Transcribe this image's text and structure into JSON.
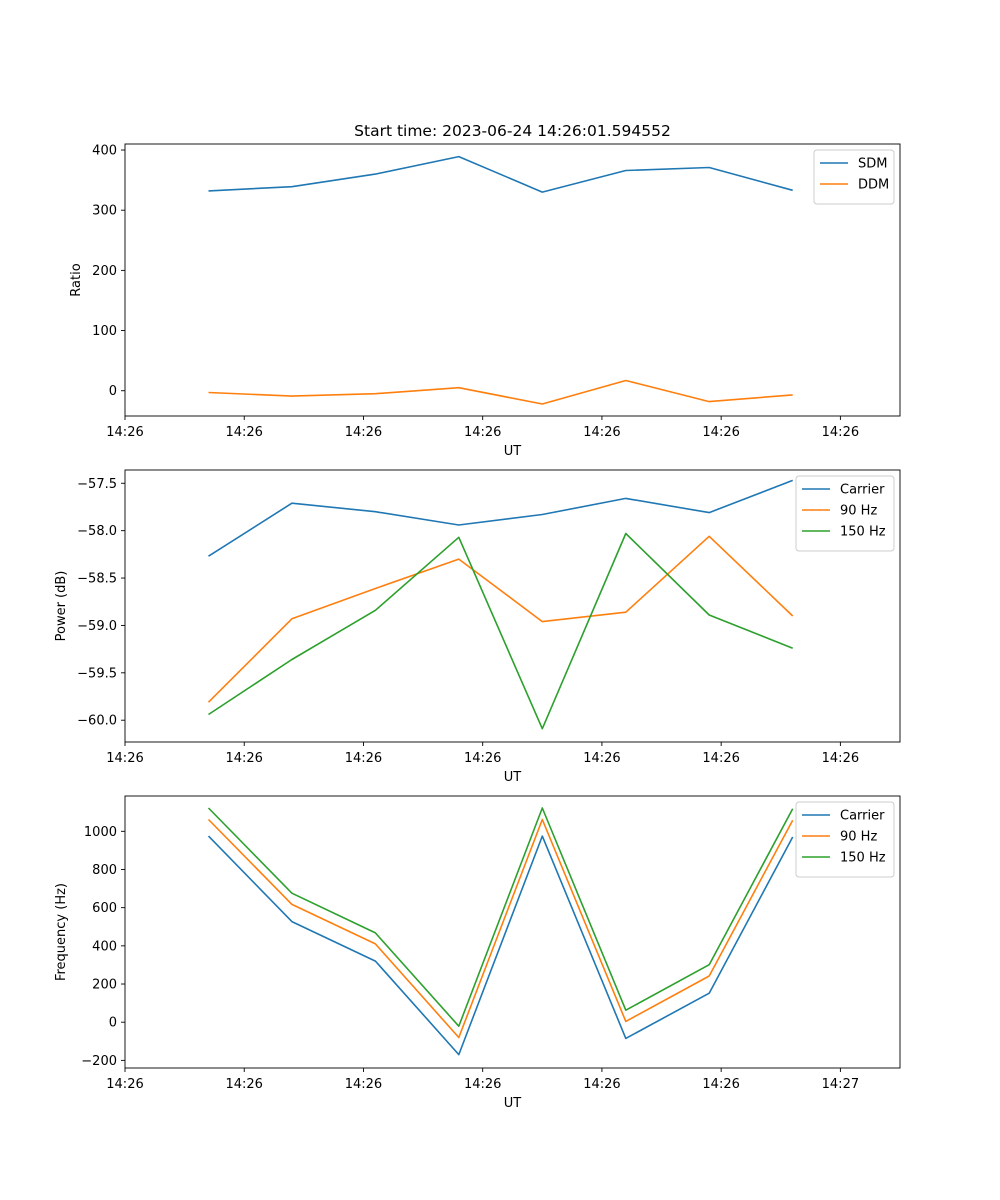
{
  "figure": {
    "title": "Start time: 2023-06-24 14:26:01.594552"
  },
  "chart_data": [
    {
      "type": "line",
      "title": "Start time: 2023-06-24 14:26:01.594552",
      "xlabel": "UT",
      "ylabel": "Ratio",
      "x": [
        0.7,
        1.4,
        2.1,
        2.8,
        3.5,
        4.2,
        4.9,
        5.6
      ],
      "xlim": [
        0.0,
        6.5
      ],
      "ylim": [
        -42,
        410
      ],
      "xticks": [
        0,
        1,
        2,
        3,
        4,
        5,
        6
      ],
      "xtick_labels": [
        "14:26",
        "14:26",
        "14:26",
        "14:26",
        "14:26",
        "14:26",
        "14:26"
      ],
      "yticks": [
        0,
        100,
        200,
        300,
        400
      ],
      "ytick_labels": [
        "0",
        "100",
        "200",
        "300",
        "400"
      ],
      "legend": "top-right",
      "grid": false,
      "series": [
        {
          "name": "SDM",
          "color": "#1f77b4",
          "values": [
            332,
            339,
            360,
            389,
            330,
            366,
            371,
            333
          ]
        },
        {
          "name": "DDM",
          "color": "#ff7f0e",
          "values": [
            -3,
            -9,
            -5,
            5,
            -22,
            17,
            -18,
            -7
          ]
        }
      ]
    },
    {
      "type": "line",
      "title": "",
      "xlabel": "UT",
      "ylabel": "Power (dB)",
      "x": [
        0.7,
        1.4,
        2.1,
        2.8,
        3.5,
        4.2,
        4.9,
        5.6
      ],
      "xlim": [
        0.0,
        6.5
      ],
      "ylim": [
        -60.23,
        -57.36
      ],
      "xticks": [
        0,
        1,
        2,
        3,
        4,
        5,
        6
      ],
      "xtick_labels": [
        "14:26",
        "14:26",
        "14:26",
        "14:26",
        "14:26",
        "14:26",
        "14:26"
      ],
      "yticks": [
        -60.0,
        -59.5,
        -59.0,
        -58.5,
        -58.0,
        -57.5
      ],
      "ytick_labels": [
        "−60.0",
        "−59.5",
        "−59.0",
        "−58.5",
        "−58.0",
        "−57.5"
      ],
      "legend": "top-right",
      "grid": false,
      "series": [
        {
          "name": "Carrier",
          "color": "#1f77b4",
          "values": [
            -58.27,
            -57.71,
            -57.8,
            -57.94,
            -57.83,
            -57.66,
            -57.81,
            -57.47
          ]
        },
        {
          "name": "90 Hz",
          "color": "#ff7f0e",
          "values": [
            -59.81,
            -58.93,
            -58.61,
            -58.3,
            -58.96,
            -58.86,
            -58.06,
            -58.9
          ]
        },
        {
          "name": "150 Hz",
          "color": "#2ca02c",
          "values": [
            -59.94,
            -59.36,
            -58.84,
            -58.07,
            -60.09,
            -58.03,
            -58.89,
            -59.24
          ]
        }
      ]
    },
    {
      "type": "line",
      "title": "",
      "xlabel": "UT",
      "ylabel": "Frequency (Hz)",
      "x": [
        0.7,
        1.4,
        2.1,
        2.8,
        3.5,
        4.2,
        4.9,
        5.6
      ],
      "xlim": [
        0.0,
        6.5
      ],
      "ylim": [
        -240,
        1185
      ],
      "xticks": [
        0,
        1,
        2,
        3,
        4,
        5,
        6
      ],
      "xtick_labels": [
        "14:26",
        "14:26",
        "14:26",
        "14:26",
        "14:26",
        "14:26",
        "14:27"
      ],
      "yticks": [
        -200,
        0,
        200,
        400,
        600,
        800,
        1000
      ],
      "ytick_labels": [
        "−200",
        "0",
        "200",
        "400",
        "600",
        "800",
        "1000"
      ],
      "legend": "top-right",
      "grid": false,
      "series": [
        {
          "name": "Carrier",
          "color": "#1f77b4",
          "values": [
            975,
            527,
            320,
            -170,
            975,
            -85,
            152,
            970
          ]
        },
        {
          "name": "90 Hz",
          "color": "#ff7f0e",
          "values": [
            1062,
            617,
            410,
            -80,
            1062,
            4,
            242,
            1058
          ]
        },
        {
          "name": "150 Hz",
          "color": "#2ca02c",
          "values": [
            1122,
            676,
            468,
            -21,
            1122,
            63,
            301,
            1118
          ]
        }
      ]
    }
  ]
}
